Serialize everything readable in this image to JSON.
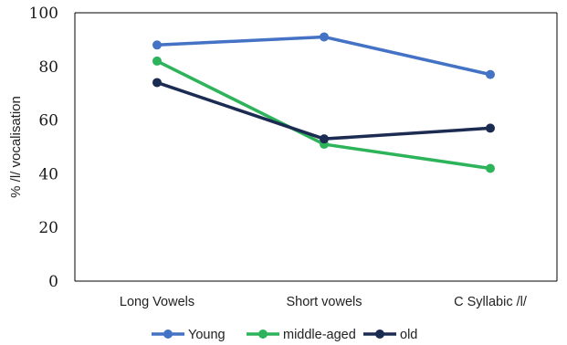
{
  "chart_data": {
    "type": "line",
    "title": "",
    "xlabel": "",
    "ylabel": "% /l/ vocalisation",
    "ylim": [
      0,
      100
    ],
    "yticks": [
      0,
      20,
      40,
      60,
      80,
      100
    ],
    "categories": [
      "Long Vowels",
      "Short vowels",
      "C Syllabic /l/"
    ],
    "series": [
      {
        "name": "Young",
        "color": "#4472C4",
        "values": [
          88,
          91,
          77
        ]
      },
      {
        "name": "middle-aged",
        "color": "#2DB45A",
        "values": [
          82,
          51,
          42
        ]
      },
      {
        "name": "old",
        "color": "#1C2B52",
        "values": [
          74,
          53,
          57
        ]
      }
    ],
    "grid": false,
    "legend_position": "bottom"
  }
}
